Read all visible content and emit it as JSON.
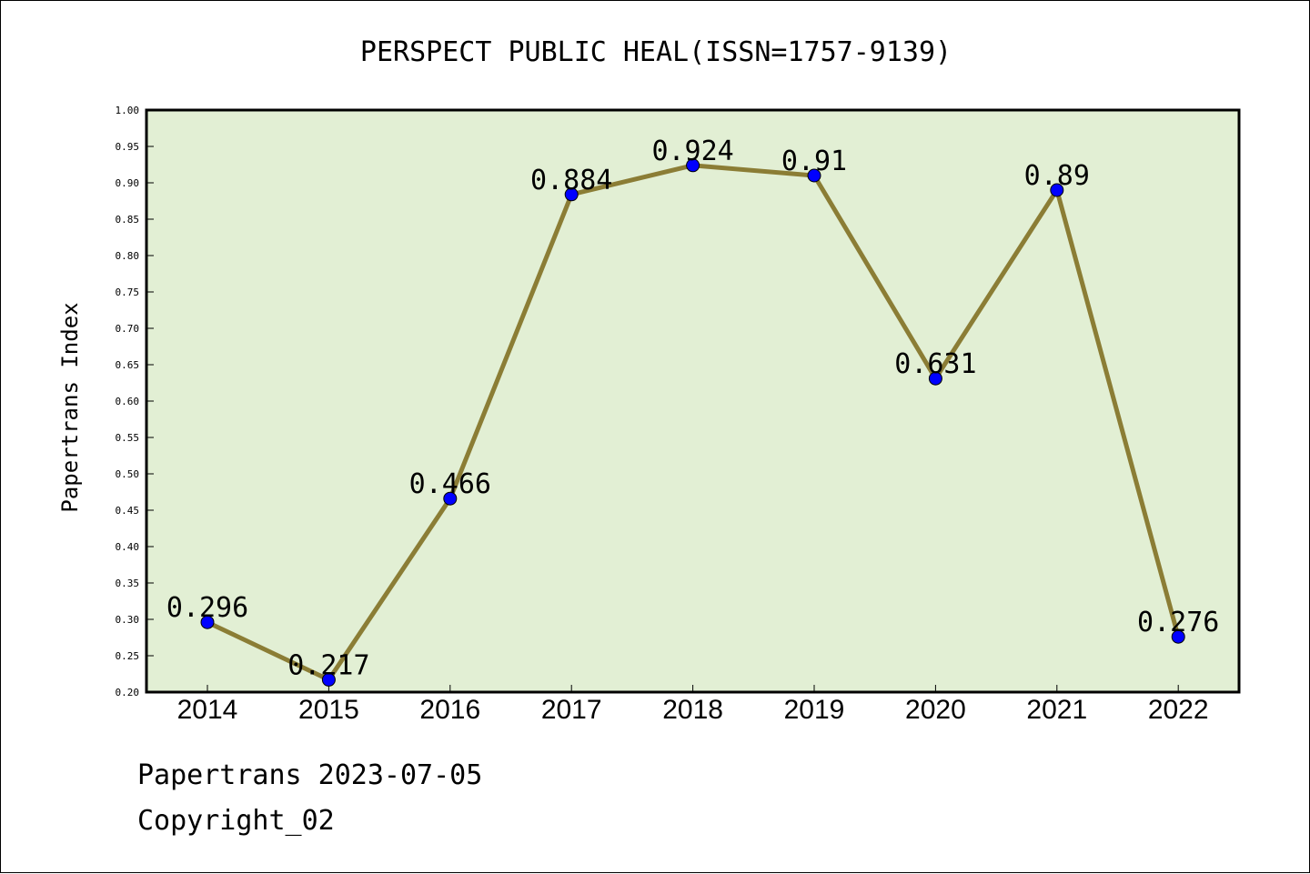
{
  "chart_data": {
    "type": "line",
    "title": "PERSPECT PUBLIC HEAL(ISSN=1757-9139)",
    "ylabel": "Papertrans Index",
    "xlabel": "",
    "categories": [
      "2014",
      "2015",
      "2016",
      "2017",
      "2018",
      "2019",
      "2020",
      "2021",
      "2022"
    ],
    "values": [
      0.296,
      0.217,
      0.466,
      0.884,
      0.924,
      0.91,
      0.631,
      0.89,
      0.276
    ],
    "value_labels": [
      "0.296",
      "0.217",
      "0.466",
      "0.884",
      "0.924",
      "0.91",
      "0.631",
      "0.89",
      "0.276"
    ],
    "ylim": [
      0.2,
      1.0
    ],
    "yticks": [
      "0.20",
      "0.25",
      "0.30",
      "0.35",
      "0.40",
      "0.45",
      "0.50",
      "0.55",
      "0.60",
      "0.65",
      "0.70",
      "0.75",
      "0.80",
      "0.85",
      "0.90",
      "0.95",
      "1.00"
    ],
    "grid": false,
    "colors": {
      "plot_background": "#e2efd4",
      "line": "#8b7d35",
      "marker": "#0000ff"
    }
  },
  "footer": {
    "date_line": "Papertrans 2023-07-05",
    "copyright_line": "Copyright_02"
  }
}
